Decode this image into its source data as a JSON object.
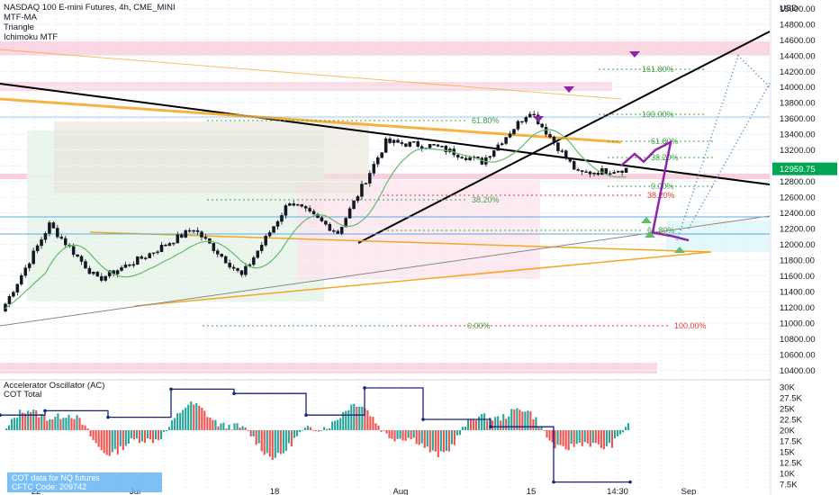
{
  "header": {
    "symbol_title": "NASDAQ 100 E-mini Futures, 4h, CME_MINI",
    "indicators": [
      "MTF-MA",
      "Triangle",
      "Ichimoku MTF"
    ]
  },
  "price_axis": {
    "currency": "USD",
    "ticks": [
      "15000.00",
      "14800.00",
      "14600.00",
      "14400.00",
      "14200.00",
      "14000.00",
      "13800.00",
      "13600.00",
      "13400.00",
      "13200.00",
      "13000.00",
      "12800.00",
      "12600.00",
      "12400.00",
      "12200.00",
      "12000.00",
      "11800.00",
      "11600.00",
      "11400.00",
      "11200.00",
      "11000.00",
      "10800.00",
      "10600.00",
      "10400.00"
    ],
    "last_price_tag": "12959.75"
  },
  "osc_axis": {
    "ticks": [
      "30K",
      "27.5K",
      "25K",
      "22.5K",
      "20K",
      "17.5K",
      "15K",
      "12.5K",
      "10K",
      "7.5K"
    ]
  },
  "time_axis": {
    "labels": [
      "22",
      "Jul",
      "18",
      "Aug",
      "15",
      "14:30",
      "Sep"
    ]
  },
  "oscillator": {
    "title": "Accelerator Oscillator (AC)",
    "subtitle": "COT Total",
    "info_box": [
      "COT data for NQ futures",
      "CFTC Code: 209742"
    ]
  },
  "fib_upper": [
    "161.80%",
    "100.00%",
    "61.80%",
    "38.20%",
    "0.00%"
  ],
  "fib_lower": [
    "61.80%",
    "38.20%",
    "0.00%",
    "100.00%",
    "61.80%",
    "38.20%"
  ],
  "colors": {
    "bull": "#26a69a",
    "bear": "#ef5350",
    "osc_up": "#26a69a",
    "osc_down": "#ef5350",
    "projection": "#8e24aa",
    "forecast": "#2e86c1",
    "trendline": "#000000",
    "fib_green": "#43a047",
    "fib_red": "#e53935",
    "last_price": "#00a651"
  },
  "chart_data": {
    "type": "candlestick",
    "timeframe": "4h",
    "y_unit": "USD",
    "ylim": [
      10300,
      15050
    ],
    "segments": [
      {
        "name": "june-low-to-rally",
        "from": 11150,
        "to": 12250
      },
      {
        "name": "pullback",
        "from": 12250,
        "to": 11550
      },
      {
        "name": "base",
        "from": 11550,
        "to": 11850
      },
      {
        "name": "rebound",
        "from": 11850,
        "to": 12200
      },
      {
        "name": "decline",
        "from": 12200,
        "to": 11600
      },
      {
        "name": "rally",
        "from": 11600,
        "to": 12550
      },
      {
        "name": "dip",
        "from": 12550,
        "to": 12150
      },
      {
        "name": "august-rally",
        "from": 12150,
        "to": 13300
      },
      {
        "name": "consolidation",
        "from": 13300,
        "to": 13250
      },
      {
        "name": "dip-2",
        "from": 13250,
        "to": 13050
      },
      {
        "name": "peak",
        "from": 13050,
        "to": 13700
      },
      {
        "name": "decline-2",
        "from": 13700,
        "to": 12900
      },
      {
        "name": "latest",
        "from": 12900,
        "to": 12960
      }
    ],
    "projection_path": [
      13000,
      13150,
      13050,
      13200,
      13300,
      12150,
      12100,
      12050
    ],
    "forecast_paths": [
      {
        "start": 12050,
        "end": 14400
      },
      {
        "start": 12200,
        "end": 14050
      }
    ],
    "osc_ylim": [
      7500,
      31250
    ]
  }
}
